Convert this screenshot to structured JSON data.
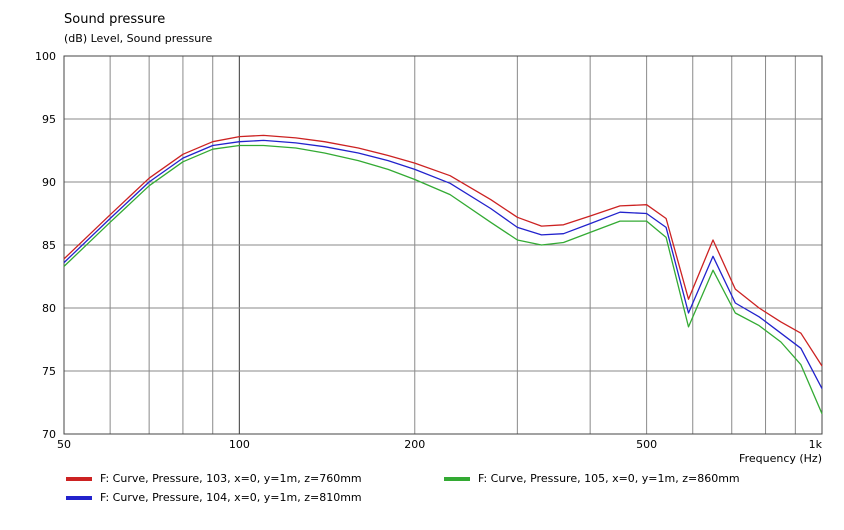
{
  "header": {
    "title": "Sound pressure",
    "subtitle": "(dB)  Level, Sound pressure"
  },
  "chart_data": {
    "type": "line",
    "title": "Sound pressure",
    "ylabel": "(dB)  Level, Sound pressure",
    "xlabel": "Frequency  (Hz)",
    "xscale": "log",
    "xlim": [
      50,
      1000
    ],
    "ylim": [
      70,
      100
    ],
    "grid": true,
    "x_tick_labels": [
      "50",
      "100",
      "200",
      "500",
      "1k"
    ],
    "x_tick_values": [
      50,
      100,
      200,
      500,
      1000
    ],
    "y_ticks": [
      70,
      75,
      80,
      85,
      90,
      95,
      100
    ],
    "legend_position": "bottom",
    "x": [
      50,
      60,
      70,
      80,
      90,
      100,
      110,
      125,
      140,
      160,
      180,
      200,
      230,
      270,
      300,
      330,
      360,
      400,
      450,
      500,
      540,
      590,
      650,
      710,
      780,
      850,
      920,
      1000
    ],
    "series": [
      {
        "name": "F: Curve, Pressure, 103, x=0, y=1m, z=760mm",
        "color": "#cc2222",
        "values": [
          83.9,
          87.4,
          90.3,
          92.2,
          93.2,
          93.6,
          93.7,
          93.5,
          93.2,
          92.7,
          92.1,
          91.5,
          90.5,
          88.6,
          87.2,
          86.5,
          86.6,
          87.3,
          88.1,
          88.2,
          87.1,
          80.7,
          85.4,
          81.5,
          80.0,
          78.9,
          78.0,
          75.4
        ]
      },
      {
        "name": "F: Curve, Pressure, 104, x=0, y=1m, z=810mm",
        "color": "#2222cc",
        "values": [
          83.6,
          87.1,
          90.0,
          91.9,
          92.9,
          93.2,
          93.3,
          93.1,
          92.8,
          92.3,
          91.7,
          91.0,
          89.9,
          87.9,
          86.4,
          85.8,
          85.9,
          86.7,
          87.6,
          87.5,
          86.4,
          79.6,
          84.1,
          80.4,
          79.3,
          78.0,
          76.8,
          73.6
        ]
      },
      {
        "name": "F: Curve, Pressure, 105, x=0, y=1m, z=860mm",
        "color": "#33aa33",
        "values": [
          83.3,
          86.8,
          89.7,
          91.6,
          92.6,
          92.9,
          92.9,
          92.7,
          92.3,
          91.7,
          91.0,
          90.2,
          89.0,
          86.8,
          85.4,
          85.0,
          85.2,
          86.0,
          86.9,
          86.9,
          85.6,
          78.5,
          83.0,
          79.6,
          78.6,
          77.3,
          75.5,
          71.6
        ]
      }
    ]
  }
}
